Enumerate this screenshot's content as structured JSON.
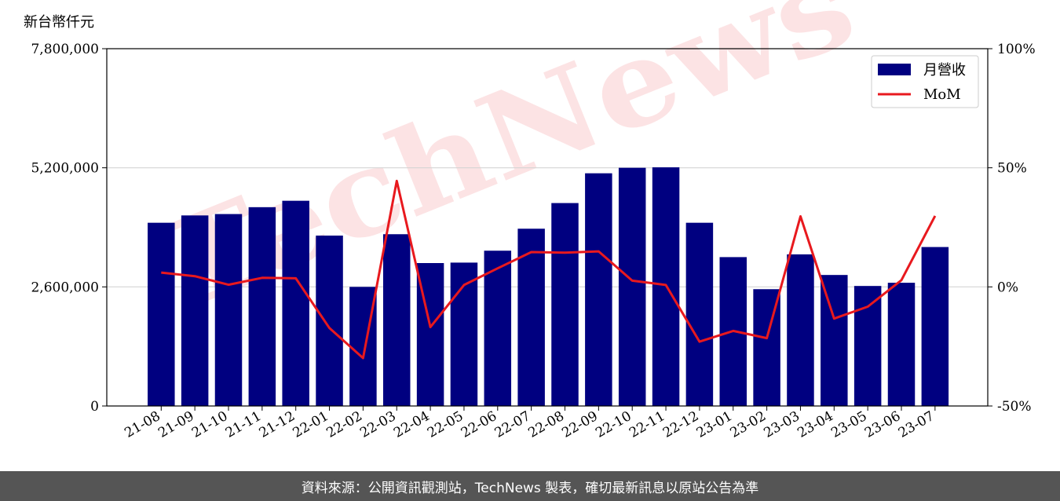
{
  "colors": {
    "bar": "#000080",
    "line": "#e8191e",
    "grid": "#d4d4d4",
    "watermark": "#e8191e",
    "footer_bg": "#555555",
    "footer_text": "#ffffff"
  },
  "footer": {
    "text": "資料來源：公開資訊觀測站，TechNews 製表，確切最新訊息以原站公告為準"
  },
  "chart_data": {
    "type": "bar",
    "title": "",
    "ylabel": "新台幣仟元",
    "xlabel": "",
    "categories": [
      "21-08",
      "21-09",
      "21-10",
      "21-11",
      "21-12",
      "22-01",
      "22-02",
      "22-03",
      "22-04",
      "22-05",
      "22-06",
      "22-07",
      "22-08",
      "22-09",
      "22-10",
      "22-11",
      "22-12",
      "23-01",
      "23-02",
      "23-03",
      "23-04",
      "23-05",
      "23-06",
      "23-07"
    ],
    "series": [
      {
        "name": "月營收",
        "type": "bar",
        "axis": "left",
        "values": [
          4000000,
          4160000,
          4190000,
          4340000,
          4480000,
          3720000,
          2600000,
          3750000,
          3120000,
          3130000,
          3390000,
          3870000,
          4430000,
          5080000,
          5200000,
          5210000,
          4000000,
          3250000,
          2550000,
          3310000,
          2860000,
          2620000,
          2690000,
          3470000
        ]
      },
      {
        "name": "MoM",
        "type": "line",
        "axis": "right",
        "values": [
          6.0,
          4.5,
          0.9,
          3.8,
          3.6,
          -17.3,
          -29.9,
          44.5,
          -16.9,
          0.8,
          7.8,
          14.6,
          14.4,
          14.9,
          2.6,
          0.8,
          -23.0,
          -18.5,
          -21.5,
          29.6,
          -13.3,
          -8.3,
          2.8,
          29.8
        ]
      }
    ],
    "y_left": {
      "ylim": [
        0,
        7800000
      ],
      "ticks": [
        0,
        2600000,
        5200000,
        7800000
      ],
      "tick_labels": [
        "0",
        "2,600,000",
        "5,200,000",
        "7,800,000"
      ]
    },
    "y_right": {
      "ylim": [
        -50,
        100
      ],
      "ticks": [
        -50,
        0,
        50,
        100
      ],
      "tick_labels": [
        "-50%",
        "0%",
        "50%",
        "100%"
      ]
    },
    "grid": "horizontal",
    "legend": {
      "placement": "top-right",
      "entries": [
        "月營收",
        "MoM"
      ]
    },
    "watermark": "TechNews"
  }
}
